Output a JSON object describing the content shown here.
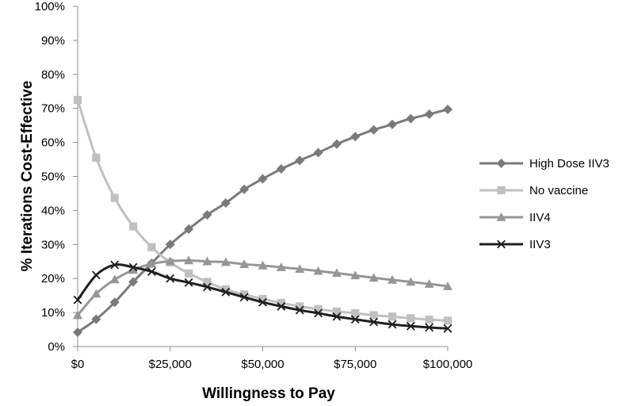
{
  "chart_data": {
    "type": "line",
    "title": "",
    "xlabel": "Willingness to Pay",
    "ylabel": "% Iterations Cost-Effective",
    "xlim": [
      0,
      100000
    ],
    "ylim": [
      0,
      100
    ],
    "x_ticks": [
      0,
      25000,
      50000,
      75000,
      100000
    ],
    "x_tick_labels": [
      "$0",
      "$25,000",
      "$50,000",
      "$75,000",
      "$100,000"
    ],
    "y_ticks": [
      0,
      10,
      20,
      30,
      40,
      50,
      60,
      70,
      80,
      90,
      100
    ],
    "y_tick_labels": [
      "0%",
      "10%",
      "20%",
      "30%",
      "40%",
      "50%",
      "60%",
      "70%",
      "80%",
      "90%",
      "100%"
    ],
    "grid": false,
    "legend_position": "right",
    "x": [
      0,
      5000,
      10000,
      15000,
      20000,
      25000,
      30000,
      35000,
      40000,
      45000,
      50000,
      55000,
      60000,
      65000,
      70000,
      75000,
      80000,
      85000,
      90000,
      95000,
      100000
    ],
    "series": [
      {
        "name": "High Dose IIV3",
        "marker": "diamond",
        "color": "#7a7a7a",
        "values": [
          4.2,
          8.0,
          13.0,
          19.0,
          24.5,
          30.0,
          34.5,
          38.7,
          42.2,
          46.2,
          49.3,
          52.2,
          54.7,
          57.0,
          59.5,
          61.7,
          63.7,
          65.3,
          67.0,
          68.3,
          69.7
        ]
      },
      {
        "name": "No vaccine",
        "marker": "square",
        "color": "#c0c0c0",
        "values": [
          72.5,
          55.5,
          43.7,
          35.3,
          29.2,
          24.7,
          21.5,
          19.0,
          16.8,
          15.3,
          14.0,
          12.8,
          11.8,
          11.0,
          10.3,
          9.8,
          9.2,
          8.8,
          8.3,
          7.9,
          7.6
        ]
      },
      {
        "name": "IIV4",
        "marker": "triangle",
        "color": "#969696",
        "values": [
          9.2,
          15.5,
          19.7,
          22.5,
          24.3,
          25.1,
          25.3,
          25.0,
          24.8,
          24.2,
          23.8,
          23.3,
          22.8,
          22.2,
          21.6,
          20.9,
          20.2,
          19.6,
          19.0,
          18.4,
          17.7
        ]
      },
      {
        "name": "IIV3",
        "marker": "x",
        "color": "#1f1f1f",
        "values": [
          13.7,
          21.0,
          24.0,
          23.3,
          22.0,
          20.0,
          18.8,
          17.5,
          16.0,
          14.5,
          13.0,
          11.8,
          10.7,
          9.8,
          8.8,
          8.0,
          7.2,
          6.5,
          6.0,
          5.6,
          5.3
        ]
      }
    ]
  }
}
